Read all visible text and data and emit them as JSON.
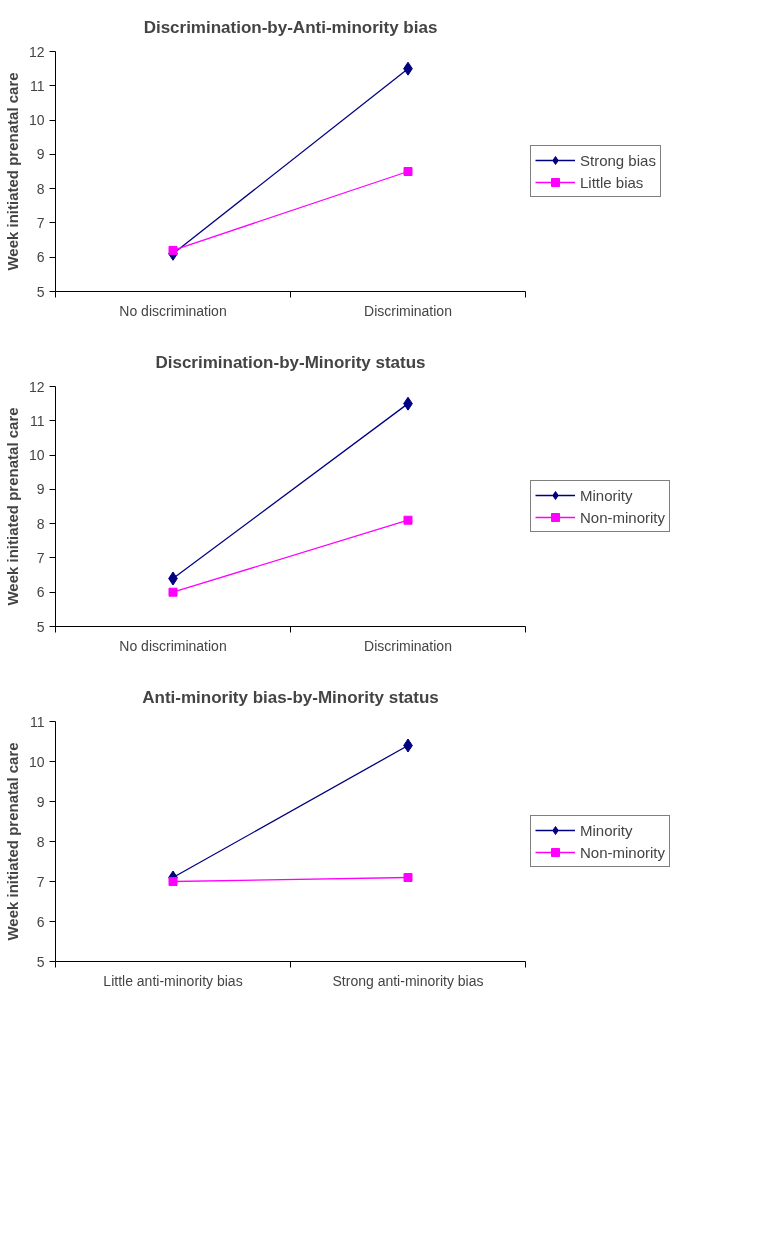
{
  "chart_data": [
    {
      "type": "line",
      "title": "Discrimination-by-Anti-minority bias",
      "ylabel": "Week initiated prenatal care",
      "categories": [
        "No discrimination",
        "Discrimination"
      ],
      "ylim": [
        5,
        12
      ],
      "yticks": [
        5,
        6,
        7,
        8,
        9,
        10,
        11,
        12
      ],
      "grid": false,
      "legend": "right",
      "series": [
        {
          "name": "Strong bias",
          "color": "#000080",
          "marker": "diamond",
          "values": [
            6.1,
            11.5
          ]
        },
        {
          "name": "Little bias",
          "color": "#ff00ff",
          "marker": "square",
          "values": [
            6.2,
            8.5
          ]
        }
      ]
    },
    {
      "type": "line",
      "title": "Discrimination-by-Minority status",
      "ylabel": "Week initiated prenatal care",
      "categories": [
        "No discrimination",
        "Discrimination"
      ],
      "ylim": [
        5,
        12
      ],
      "yticks": [
        5,
        6,
        7,
        8,
        9,
        10,
        11,
        12
      ],
      "grid": false,
      "legend": "right",
      "series": [
        {
          "name": "Minority",
          "color": "#000080",
          "marker": "diamond",
          "values": [
            6.4,
            11.5
          ]
        },
        {
          "name": "Non-minority",
          "color": "#ff00ff",
          "marker": "square",
          "values": [
            6.0,
            8.1
          ]
        }
      ]
    },
    {
      "type": "line",
      "title": "Anti-minority bias-by-Minority status",
      "ylabel": "Week initiated prenatal care",
      "categories": [
        "Little anti-minority bias",
        "Strong anti-minority bias"
      ],
      "ylim": [
        5,
        11
      ],
      "yticks": [
        5,
        6,
        7,
        8,
        9,
        10,
        11
      ],
      "grid": false,
      "legend": "right",
      "series": [
        {
          "name": "Minority",
          "color": "#000080",
          "marker": "diamond",
          "values": [
            7.1,
            10.4
          ]
        },
        {
          "name": "Non-minority",
          "color": "#ff00ff",
          "marker": "square",
          "values": [
            7.0,
            7.1
          ]
        }
      ]
    }
  ]
}
